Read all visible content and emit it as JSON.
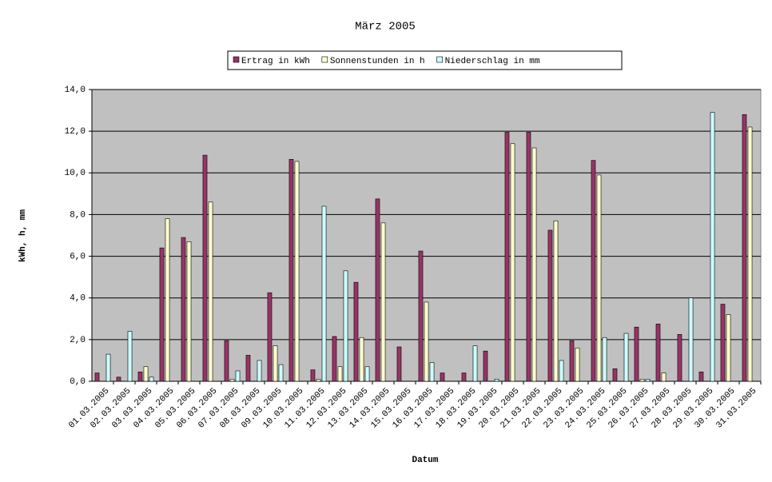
{
  "chart_data": {
    "type": "bar",
    "title": "März 2005",
    "x_label": "Datum",
    "y_label": "kWh, h, mm",
    "categories": [
      "01.03.2005",
      "02.03.2005",
      "03.03.2005",
      "04.03.2005",
      "05.03.2005",
      "06.03.2005",
      "07.03.2005",
      "08.03.2005",
      "09.03.2005",
      "10.03.2005",
      "11.03.2005",
      "12.03.2005",
      "13.03.2005",
      "14.03.2005",
      "15.03.2005",
      "16.03.2005",
      "17.03.2005",
      "18.03.2005",
      "19.03.2005",
      "20.03.2005",
      "21.03.2005",
      "22.03.2005",
      "23.03.2005",
      "24.03.2005",
      "25.03.2005",
      "26.03.2005",
      "27.03.2005",
      "28.03.2005",
      "29.03.2005",
      "30.03.2005",
      "31.03.2005"
    ],
    "series": [
      {
        "name": "Ertrag in kWh",
        "color": "#993366",
        "values": [
          0.4,
          0.2,
          0.45,
          6.4,
          6.9,
          10.85,
          1.95,
          1.25,
          4.25,
          10.65,
          0.55,
          2.15,
          4.75,
          8.75,
          1.65,
          6.25,
          0.4,
          0.4,
          1.45,
          11.95,
          11.95,
          7.25,
          1.95,
          10.6,
          0.6,
          2.6,
          2.75,
          2.25,
          0.45,
          3.7,
          12.8
        ]
      },
      {
        "name": "Sonnenstunden in h",
        "color": "#FFFFCC",
        "values": [
          0,
          0,
          0.7,
          7.8,
          6.7,
          8.6,
          0.1,
          0,
          1.7,
          10.55,
          0.1,
          0.7,
          2.1,
          7.6,
          0,
          3.8,
          0,
          0,
          0,
          11.4,
          11.2,
          7.7,
          1.6,
          9.9,
          0,
          0.1,
          0.4,
          0,
          0,
          3.2,
          12.2
        ]
      },
      {
        "name": "Niederschlag in mm",
        "color": "#CCFFFF",
        "values": [
          1.3,
          2.4,
          0.2,
          0,
          0,
          0,
          0.5,
          1.0,
          0.8,
          0,
          8.4,
          5.3,
          0.7,
          0,
          0,
          0.9,
          0,
          1.7,
          0.1,
          0,
          0,
          1.0,
          0,
          2.1,
          2.3,
          0.1,
          0,
          4.0,
          12.9,
          0,
          0
        ]
      }
    ],
    "ylim": [
      0,
      14
    ],
    "yticks": [
      {
        "value": 0,
        "label": "0,0"
      },
      {
        "value": 2,
        "label": "2,0"
      },
      {
        "value": 4,
        "label": "4,0"
      },
      {
        "value": 6,
        "label": "6,0"
      },
      {
        "value": 8,
        "label": "8,0"
      },
      {
        "value": 10,
        "label": "10,0"
      },
      {
        "value": 12,
        "label": "12,0"
      },
      {
        "value": 14,
        "label": "14,0"
      }
    ],
    "grid": true,
    "plot_background": "#C0C0C0",
    "legend": "top"
  }
}
